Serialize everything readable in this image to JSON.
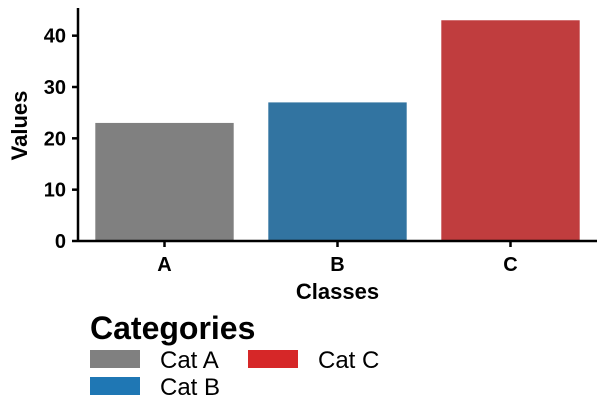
{
  "chart_data": {
    "type": "bar",
    "categories": [
      "A",
      "B",
      "C"
    ],
    "values": [
      23,
      27,
      43
    ],
    "bar_colors": [
      "#808080",
      "#3274a1",
      "#c03d3e"
    ],
    "xlabel": "Classes",
    "ylabel": "Values",
    "ylim": [
      0,
      45
    ],
    "yticks": [
      0,
      10,
      20,
      30,
      40
    ],
    "grid": false,
    "legend": {
      "title": "Categories",
      "placement": "bottom-left",
      "entries": [
        {
          "label": "Cat A",
          "color": "#808080"
        },
        {
          "label": "Cat B",
          "color": "#1f77b4"
        },
        {
          "label": "Cat C",
          "color": "#d62728"
        }
      ]
    }
  }
}
